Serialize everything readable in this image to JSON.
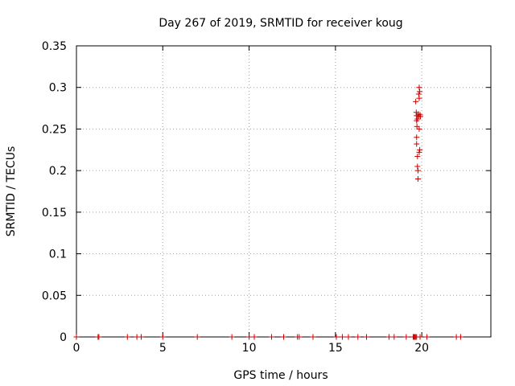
{
  "chart_data": {
    "type": "scatter",
    "title": "Day 267 of 2019, SRMTID for receiver koug",
    "xlabel": "GPS time / hours",
    "ylabel": "SRMTID / TECUs",
    "xlim": [
      0,
      24
    ],
    "ylim": [
      0,
      0.35
    ],
    "xticks": [
      0,
      5,
      10,
      15,
      20
    ],
    "xtick_labels": [
      "0",
      "5",
      "10",
      "15",
      "20"
    ],
    "yticks": [
      0,
      0.05,
      0.1,
      0.15,
      0.2,
      0.25,
      0.3,
      0.35
    ],
    "ytick_labels": [
      "0",
      "0.05",
      "0.1",
      "0.15",
      "0.2",
      "0.25",
      "0.3",
      "0.35"
    ],
    "grid": true,
    "marker": "+",
    "marker_color": "#cc0000",
    "points": [
      {
        "x": 0.0,
        "y": 0
      },
      {
        "x": 1.25,
        "y": 0
      },
      {
        "x": 1.3,
        "y": 0
      },
      {
        "x": 2.95,
        "y": 0
      },
      {
        "x": 3.5,
        "y": 0
      },
      {
        "x": 3.75,
        "y": 0
      },
      {
        "x": 5.0,
        "y": 0
      },
      {
        "x": 7.0,
        "y": 0
      },
      {
        "x": 9.0,
        "y": 0
      },
      {
        "x": 10.0,
        "y": 0
      },
      {
        "x": 10.3,
        "y": 0
      },
      {
        "x": 11.3,
        "y": 0
      },
      {
        "x": 12.0,
        "y": 0
      },
      {
        "x": 12.8,
        "y": 0
      },
      {
        "x": 12.9,
        "y": 0
      },
      {
        "x": 13.7,
        "y": 0
      },
      {
        "x": 15.05,
        "y": 0
      },
      {
        "x": 15.4,
        "y": 0
      },
      {
        "x": 15.75,
        "y": 0
      },
      {
        "x": 16.3,
        "y": 0
      },
      {
        "x": 16.8,
        "y": 0
      },
      {
        "x": 18.1,
        "y": 0
      },
      {
        "x": 18.4,
        "y": 0
      },
      {
        "x": 19.1,
        "y": 0
      },
      {
        "x": 19.5,
        "y": 0
      },
      {
        "x": 19.55,
        "y": 0
      },
      {
        "x": 19.6,
        "y": 0
      },
      {
        "x": 19.65,
        "y": 0
      },
      {
        "x": 19.7,
        "y": 0
      },
      {
        "x": 19.9,
        "y": 0
      },
      {
        "x": 20.3,
        "y": 0
      },
      {
        "x": 22.0,
        "y": 0
      },
      {
        "x": 22.25,
        "y": 0
      },
      {
        "x": 19.65,
        "y": 0.283
      },
      {
        "x": 19.68,
        "y": 0.27
      },
      {
        "x": 19.7,
        "y": 0.266
      },
      {
        "x": 19.7,
        "y": 0.26
      },
      {
        "x": 19.72,
        "y": 0.253
      },
      {
        "x": 19.7,
        "y": 0.24
      },
      {
        "x": 19.7,
        "y": 0.232
      },
      {
        "x": 19.75,
        "y": 0.217
      },
      {
        "x": 19.75,
        "y": 0.205
      },
      {
        "x": 19.78,
        "y": 0.2
      },
      {
        "x": 19.78,
        "y": 0.19
      },
      {
        "x": 19.8,
        "y": 0.268
      },
      {
        "x": 19.82,
        "y": 0.265
      },
      {
        "x": 19.85,
        "y": 0.25
      },
      {
        "x": 19.85,
        "y": 0.222
      },
      {
        "x": 19.88,
        "y": 0.225
      },
      {
        "x": 19.82,
        "y": 0.292
      },
      {
        "x": 19.85,
        "y": 0.287
      },
      {
        "x": 19.85,
        "y": 0.3
      },
      {
        "x": 19.88,
        "y": 0.295
      },
      {
        "x": 19.9,
        "y": 0.267
      },
      {
        "x": 19.92,
        "y": 0.265
      },
      {
        "x": 19.75,
        "y": 0.262
      }
    ]
  }
}
